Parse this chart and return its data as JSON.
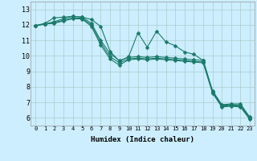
{
  "xlabel": "Humidex (Indice chaleur)",
  "background_color": "#cceeff",
  "grid_color": "#aacccc",
  "line_color": "#1a7a6a",
  "markersize": 2.5,
  "linewidth": 0.8,
  "xlim": [
    -0.5,
    23.5
  ],
  "ylim": [
    5.5,
    13.5
  ],
  "yticks": [
    6,
    7,
    8,
    9,
    10,
    11,
    12,
    13
  ],
  "xticks": [
    0,
    1,
    2,
    3,
    4,
    5,
    6,
    7,
    8,
    9,
    10,
    11,
    12,
    13,
    14,
    15,
    16,
    17,
    18,
    19,
    20,
    21,
    22,
    23
  ],
  "series": [
    [
      11.95,
      12.1,
      12.45,
      12.5,
      12.55,
      12.5,
      12.35,
      11.9,
      10.3,
      9.65,
      9.95,
      11.5,
      10.55,
      11.6,
      10.9,
      10.65,
      10.25,
      10.1,
      9.7,
      7.75,
      6.85,
      6.9,
      6.9,
      6.05
    ],
    [
      11.95,
      12.05,
      12.2,
      12.4,
      12.55,
      12.5,
      12.1,
      11.0,
      10.15,
      9.7,
      9.9,
      9.95,
      9.9,
      9.95,
      9.9,
      9.85,
      9.8,
      9.75,
      9.7,
      7.7,
      6.8,
      6.85,
      6.8,
      6.0
    ],
    [
      11.95,
      12.05,
      12.15,
      12.3,
      12.45,
      12.42,
      12.0,
      10.85,
      9.95,
      9.55,
      9.8,
      9.85,
      9.8,
      9.85,
      9.8,
      9.75,
      9.7,
      9.65,
      9.6,
      7.65,
      6.75,
      6.8,
      6.75,
      5.95
    ],
    [
      11.95,
      12.05,
      12.1,
      12.25,
      12.4,
      12.38,
      11.9,
      10.7,
      9.8,
      9.4,
      9.75,
      9.8,
      9.75,
      9.8,
      9.75,
      9.7,
      9.65,
      9.6,
      9.55,
      7.6,
      6.7,
      6.75,
      6.7,
      5.9
    ]
  ]
}
